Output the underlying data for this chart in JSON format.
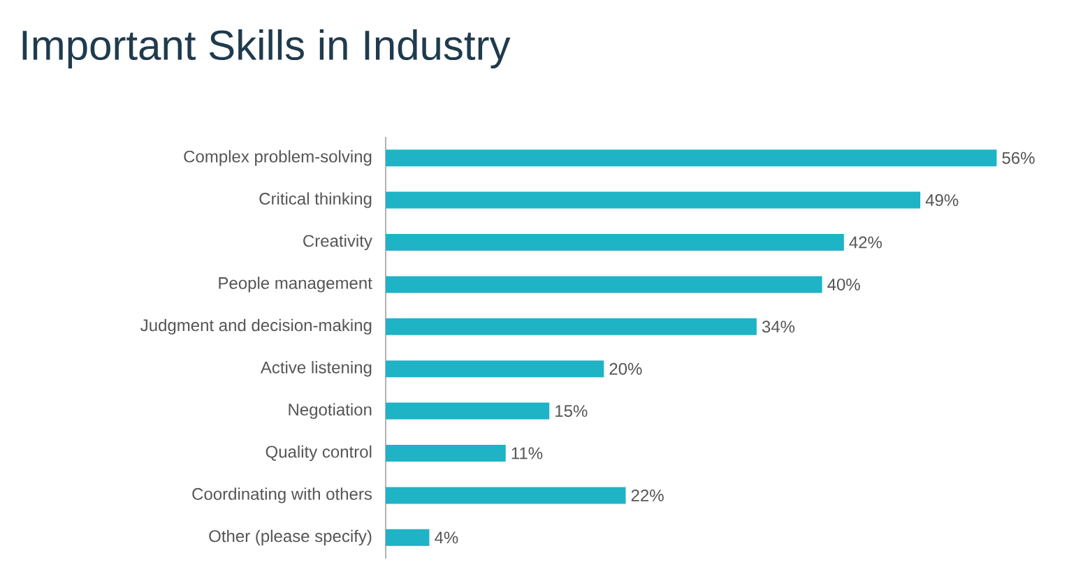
{
  "chart_data": {
    "type": "bar",
    "orientation": "horizontal",
    "title": "Important Skills in Industry",
    "categories": [
      "Complex problem-solving",
      "Critical thinking",
      "Creativity",
      "People management",
      "Judgment and decision-making",
      "Active listening",
      "Negotiation",
      "Quality control",
      "Coordinating with others",
      "Other (please specify)"
    ],
    "values": [
      56,
      49,
      42,
      40,
      34,
      20,
      15,
      11,
      22,
      4
    ],
    "value_labels": [
      "56%",
      "49%",
      "42%",
      "40%",
      "34%",
      "20%",
      "15%",
      "11%",
      "22%",
      "4%"
    ],
    "color": "#1fb3c6"
  }
}
